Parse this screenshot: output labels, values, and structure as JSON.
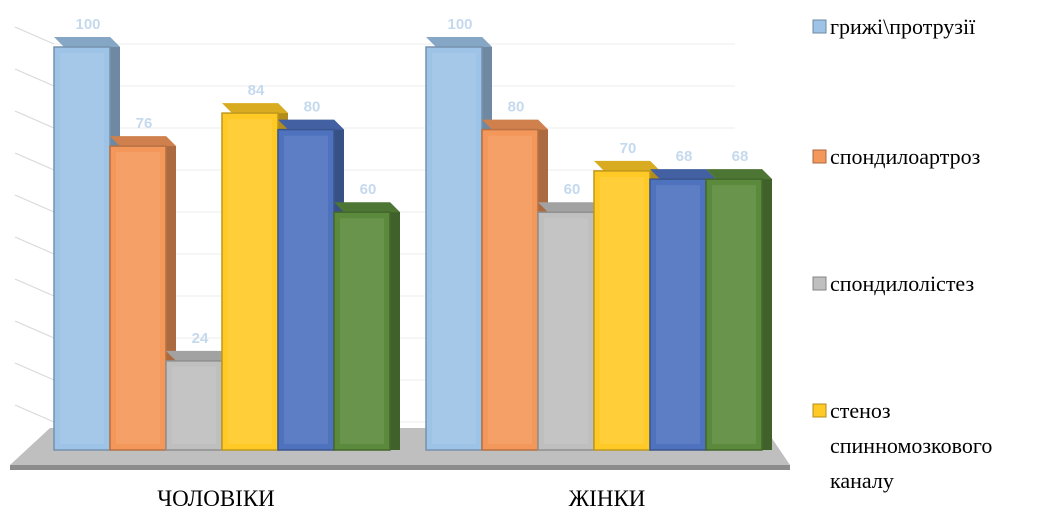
{
  "chart_data": {
    "type": "bar",
    "categories": [
      "ЧОЛОВІКИ",
      "ЖІНКИ"
    ],
    "series": [
      {
        "name": "грижі\\протрузії",
        "color": "#9dc3e6",
        "values": [
          100,
          100
        ]
      },
      {
        "name": "спондилоартроз",
        "color": "#f4975a",
        "values": [
          76,
          80
        ]
      },
      {
        "name": "спондилолістез",
        "color": "#bfbfbf",
        "values": [
          24,
          60
        ]
      },
      {
        "name": "стеноз спинномозкового каналу",
        "legend_lines": [
          "стеноз",
          "спинномозкового",
          "каналу"
        ],
        "color": "#ffc926",
        "values": [
          84,
          70
        ]
      },
      {
        "name": "",
        "color": "#4f72be",
        "values": [
          80,
          68
        ]
      },
      {
        "name": "",
        "color": "#5b8a3c",
        "values": [
          60,
          68
        ]
      }
    ],
    "ylim": [
      0,
      100
    ],
    "grid": true,
    "legend": "right",
    "title": "",
    "xlabel": "",
    "ylabel": ""
  }
}
